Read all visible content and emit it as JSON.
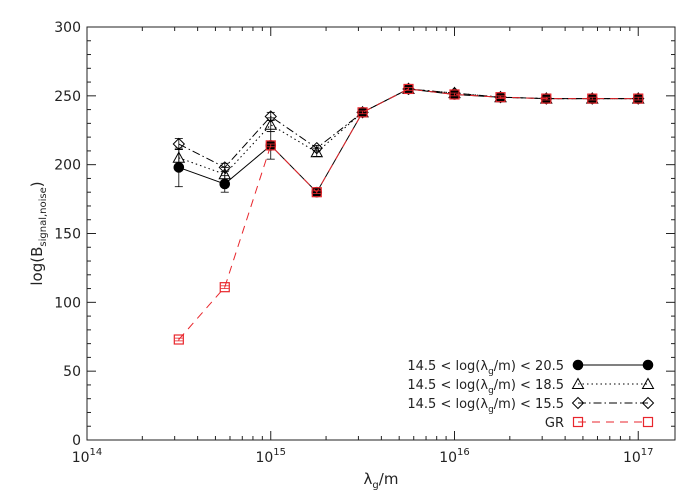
{
  "chart_data": {
    "type": "line",
    "title": "",
    "xlabel": {
      "base": "λ",
      "sub": "g",
      "rest": "/m"
    },
    "ylabel": {
      "pre": "log(B",
      "sub": "signal,noise",
      "post": ")"
    },
    "x_scale": "log",
    "xlim": [
      100000000000000.0,
      1.585e+17
    ],
    "ylim": [
      0,
      300
    ],
    "grid": false,
    "legend_position": "bottom-right",
    "x_ticks": [
      {
        "value": 100000000000000.0,
        "base": "10",
        "exp": "14"
      },
      {
        "value": 1000000000000000.0,
        "base": "10",
        "exp": "15"
      },
      {
        "value": 1e+16,
        "base": "10",
        "exp": "16"
      },
      {
        "value": 1e+17,
        "base": "10",
        "exp": "17"
      }
    ],
    "y_ticks": [
      "0",
      "50",
      "100",
      "150",
      "200",
      "250",
      "300"
    ],
    "x": [
      316000000000000.0,
      562000000000000.0,
      1000000000000000.0,
      1780000000000000.0,
      3160000000000000.0,
      5620000000000000.0,
      1e+16,
      1.78e+16,
      3.16e+16,
      5.62e+16,
      1e+17
    ],
    "series": [
      {
        "name": "14.5 < log(λg/m) < 20.5",
        "label": {
          "a": "14.5 < log(λ",
          "sub": "g",
          "b": "/m) < 20.5"
        },
        "marker": "filled-circle",
        "line": "solid",
        "color": "#000000",
        "values": [
          198,
          186,
          214,
          180,
          238,
          255,
          251,
          249,
          248,
          248,
          248
        ],
        "errors": [
          14,
          6,
          10,
          2,
          2,
          1,
          1,
          1,
          1,
          1,
          1
        ]
      },
      {
        "name": "14.5 < log(λg/m) < 18.5",
        "label": {
          "a": "14.5 < log(λ",
          "sub": "g",
          "b": "/m) < 18.5"
        },
        "marker": "triangle",
        "line": "dotted",
        "color": "#000000",
        "values": [
          205,
          193,
          229,
          209,
          238,
          255,
          252,
          249,
          248,
          248,
          248
        ],
        "errors": [
          6,
          5,
          5,
          3,
          2,
          1,
          1,
          1,
          1,
          1,
          1
        ]
      },
      {
        "name": "14.5 < log(λg/m) < 15.5",
        "label": {
          "a": "14.5 < log(λ",
          "sub": "g",
          "b": "/m) < 15.5"
        },
        "marker": "diamond",
        "line": "dashdot",
        "color": "#000000",
        "values": [
          215,
          198,
          235,
          212,
          238,
          255,
          252,
          249,
          248,
          248,
          248
        ],
        "errors": [
          4,
          3,
          3,
          2,
          2,
          1,
          1,
          1,
          1,
          1,
          1
        ]
      },
      {
        "name": "GR",
        "label": {
          "a": "GR",
          "sub": "",
          "b": ""
        },
        "marker": "square",
        "line": "dashed",
        "color": "#e8262c",
        "values": [
          73,
          111,
          214,
          180,
          238,
          255,
          251,
          249,
          248,
          248,
          248
        ],
        "errors": [
          1,
          1,
          1,
          1,
          1,
          1,
          1,
          1,
          1,
          1,
          1
        ]
      }
    ]
  }
}
